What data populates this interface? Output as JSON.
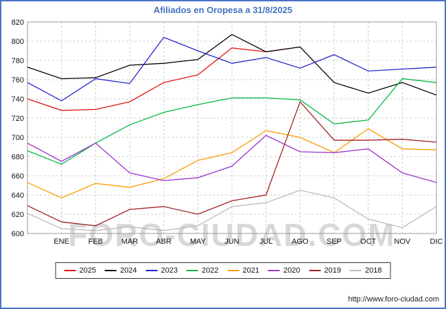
{
  "title": "Afiliados en Oropesa a 31/8/2025",
  "watermark": "FORO-CIUDAD.COM",
  "footer": {
    "url": "http://www.foro-ciudad.com"
  },
  "chart_data": {
    "type": "line",
    "title": "Afiliados en Oropesa a 31/8/2025",
    "categories": [
      "ENE",
      "FEB",
      "MAR",
      "ABR",
      "MAY",
      "JUN",
      "JUL",
      "AGO",
      "SEP",
      "OCT",
      "NOV",
      "DIC"
    ],
    "ylim": [
      600,
      820
    ],
    "ytick_step": 20,
    "grid": true,
    "legend_position": "bottom",
    "series": [
      {
        "name": "2025",
        "color": "#e01313",
        "values": [
          740,
          728,
          729,
          737,
          757,
          765,
          793,
          789,
          794
        ]
      },
      {
        "name": "2024",
        "color": "#000000",
        "values": [
          773,
          761,
          762,
          775,
          777,
          781,
          807,
          789,
          794,
          757,
          746,
          757,
          744
        ]
      },
      {
        "name": "2023",
        "color": "#2222cc",
        "values": [
          757,
          738,
          761,
          756,
          804,
          790,
          777,
          783,
          772,
          786,
          769,
          771,
          773
        ]
      },
      {
        "name": "2022",
        "color": "#00b840",
        "values": [
          686,
          672,
          694,
          713,
          726,
          734,
          741,
          741,
          739,
          714,
          718,
          761,
          757
        ]
      },
      {
        "name": "2021",
        "color": "#ff9900",
        "values": [
          653,
          637,
          652,
          648,
          657,
          676,
          684,
          707,
          700,
          684,
          709,
          688,
          687
        ]
      },
      {
        "name": "2020",
        "color": "#9933cc",
        "values": [
          694,
          675,
          694,
          663,
          655,
          658,
          670,
          702,
          685,
          684,
          688,
          663,
          653
        ]
      },
      {
        "name": "2019",
        "color": "#a02020",
        "values": [
          629,
          612,
          608,
          625,
          628,
          620,
          634,
          640,
          737,
          697,
          697,
          698,
          695
        ]
      },
      {
        "name": "2018",
        "color": "#bbbbbb",
        "values": [
          621,
          605,
          603,
          607,
          603,
          608,
          628,
          632,
          645,
          637,
          615,
          606,
          628
        ]
      }
    ]
  }
}
